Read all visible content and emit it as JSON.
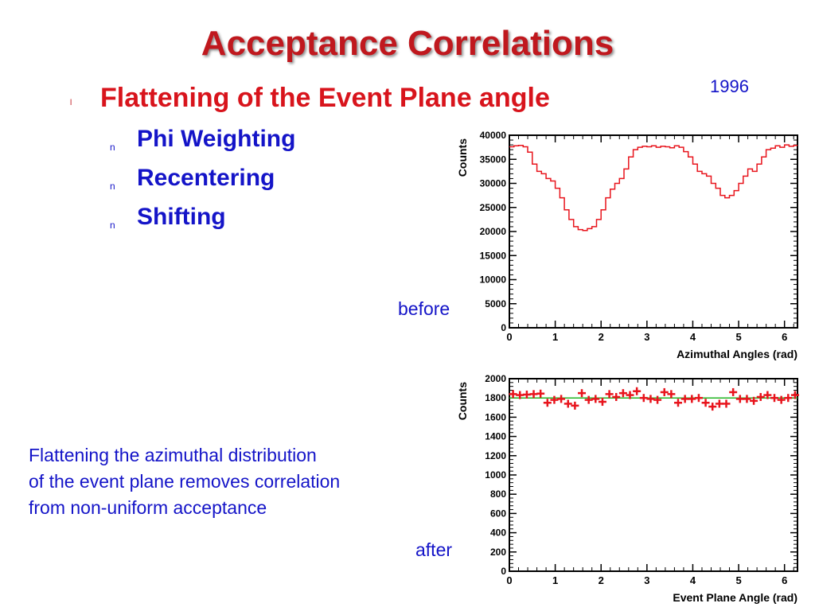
{
  "slide": {
    "title": "Acceptance Correlations",
    "year": "1996",
    "heading_bullet": "l",
    "heading": "Flattening of the Event Plane angle",
    "sub_bullet": "n",
    "subitems": [
      "Phi Weighting",
      "Recentering",
      "Shifting"
    ],
    "note_lines": [
      "Flattening the azimuthal distribution",
      "of the event plane removes correlation",
      "from non-uniform acceptance"
    ],
    "before_label": "before",
    "after_label": "after"
  },
  "colors": {
    "title": "#c0181e",
    "heading": "#d8141c",
    "body": "#1414c8",
    "series": "#e8141c",
    "fit": "#22b422"
  },
  "chart_data": [
    {
      "type": "line",
      "title": "",
      "xlabel": "Azimuthal Angles (rad)",
      "ylabel": "Counts",
      "xlim": [
        0,
        6.2832
      ],
      "ylim": [
        0,
        40000
      ],
      "xticks": [
        0,
        1,
        2,
        3,
        4,
        5,
        6
      ],
      "yticks": [
        0,
        5000,
        10000,
        15000,
        20000,
        25000,
        30000,
        35000,
        40000
      ],
      "style": "histogram",
      "series": [
        {
          "name": "before",
          "x": [
            0.05,
            0.15,
            0.25,
            0.35,
            0.45,
            0.55,
            0.65,
            0.75,
            0.85,
            0.95,
            1.05,
            1.15,
            1.25,
            1.35,
            1.45,
            1.55,
            1.65,
            1.75,
            1.85,
            1.95,
            2.05,
            2.15,
            2.25,
            2.35,
            2.45,
            2.55,
            2.65,
            2.75,
            2.85,
            2.95,
            3.05,
            3.15,
            3.25,
            3.35,
            3.45,
            3.55,
            3.65,
            3.75,
            3.85,
            3.95,
            4.05,
            4.15,
            4.25,
            4.35,
            4.45,
            4.55,
            4.65,
            4.75,
            4.85,
            4.95,
            5.05,
            5.15,
            5.25,
            5.35,
            5.45,
            5.55,
            5.65,
            5.75,
            5.85,
            5.95,
            6.05,
            6.15,
            6.25
          ],
          "values": [
            37600,
            37800,
            37900,
            37600,
            36500,
            34000,
            32500,
            32000,
            31000,
            30500,
            29000,
            27000,
            24500,
            22500,
            21000,
            20400,
            20200,
            20600,
            21000,
            22500,
            24500,
            27000,
            28800,
            30000,
            31000,
            33000,
            35500,
            37000,
            37500,
            37700,
            37600,
            37800,
            37500,
            37700,
            37600,
            37400,
            37800,
            37500,
            36600,
            35500,
            34000,
            32500,
            32000,
            31500,
            30000,
            29000,
            27500,
            27000,
            27500,
            28500,
            30000,
            31500,
            33000,
            32500,
            34000,
            35500,
            37000,
            37300,
            37800,
            37500,
            38000,
            37700,
            37900
          ]
        }
      ]
    },
    {
      "type": "scatter",
      "title": "",
      "xlabel": "Event Plane Angle (rad)",
      "ylabel": "Counts",
      "xlim": [
        0,
        6.2832
      ],
      "ylim": [
        0,
        2000
      ],
      "xticks": [
        0,
        1,
        2,
        3,
        4,
        5,
        6
      ],
      "yticks": [
        0,
        200,
        400,
        600,
        800,
        1000,
        1200,
        1400,
        1600,
        1800,
        2000
      ],
      "fit_constant": 1800,
      "series": [
        {
          "name": "after",
          "x": [
            0.08,
            0.23,
            0.38,
            0.53,
            0.68,
            0.83,
            0.98,
            1.13,
            1.28,
            1.43,
            1.58,
            1.73,
            1.88,
            2.03,
            2.18,
            2.33,
            2.48,
            2.63,
            2.78,
            2.93,
            3.08,
            3.23,
            3.38,
            3.53,
            3.68,
            3.83,
            3.98,
            4.13,
            4.28,
            4.43,
            4.58,
            4.73,
            4.88,
            5.03,
            5.18,
            5.33,
            5.48,
            5.63,
            5.78,
            5.93,
            6.08,
            6.23
          ],
          "values": [
            1840,
            1830,
            1835,
            1840,
            1845,
            1750,
            1780,
            1790,
            1740,
            1720,
            1850,
            1780,
            1790,
            1760,
            1840,
            1810,
            1850,
            1830,
            1870,
            1800,
            1790,
            1780,
            1860,
            1840,
            1750,
            1790,
            1790,
            1800,
            1750,
            1710,
            1740,
            1740,
            1860,
            1790,
            1790,
            1770,
            1810,
            1830,
            1800,
            1780,
            1800,
            1830
          ]
        }
      ]
    }
  ]
}
